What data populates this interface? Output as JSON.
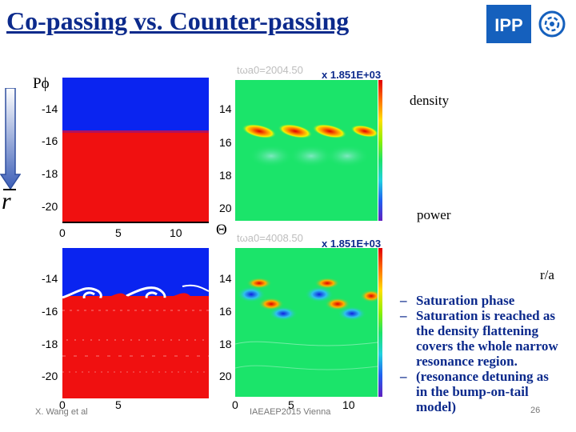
{
  "title": "Co-passing vs. Counter-passing",
  "labels": {
    "p_phi": "Pϕ",
    "r": "r",
    "theta": "Θ",
    "density": "density",
    "power": "power",
    "r_over_a": "r/a"
  },
  "plots": {
    "time_top": "tωa0=2004.50",
    "time_bottom": "tωa0=4008.50",
    "scale_top": "x 1.851E+03",
    "scale_bottom": "x 1.851E+03",
    "left_y_ticks": [
      "-14",
      "-16",
      "-18",
      "-20"
    ],
    "right_y_ticks": [
      "14",
      "16",
      "18",
      "20"
    ],
    "x_ticks": [
      "0",
      "5",
      "10"
    ]
  },
  "bullets": [
    "Saturation phase",
    "Saturation is reached as the density flattening covers the whole narrow resonance region.",
    "(resonance detuning as in the bump-on-tail model)"
  ],
  "footer": {
    "author": "X. Wang et al",
    "conference": "IAEAEP2015 Vienna",
    "page": "26"
  },
  "colors": {
    "title": "#0c2a8c",
    "blue_region": "#0a24f0",
    "red_region": "#f01010",
    "green_field": "#1be46a",
    "logo_bg": "#1560bd"
  }
}
